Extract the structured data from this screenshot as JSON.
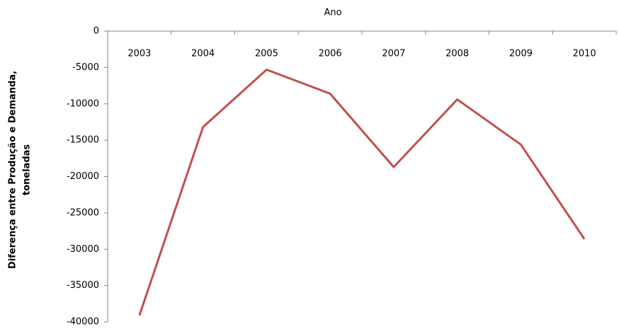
{
  "chart_data": {
    "type": "line",
    "x_label": "Ano",
    "y_label": [
      "Diferença entre Produção e Demanda,",
      "toneladas"
    ],
    "categories": [
      "2003",
      "2004",
      "2005",
      "2006",
      "2007",
      "2008",
      "2009",
      "2010"
    ],
    "values": [
      -39100,
      -13200,
      -5300,
      -8600,
      -18700,
      -9400,
      -15600,
      -28600
    ],
    "color": "#c0504d",
    "ylim": [
      -40000,
      0
    ],
    "yticks": [
      0,
      -5000,
      -10000,
      -15000,
      -20000,
      -25000,
      -30000,
      -35000,
      -40000
    ],
    "grid": false
  }
}
